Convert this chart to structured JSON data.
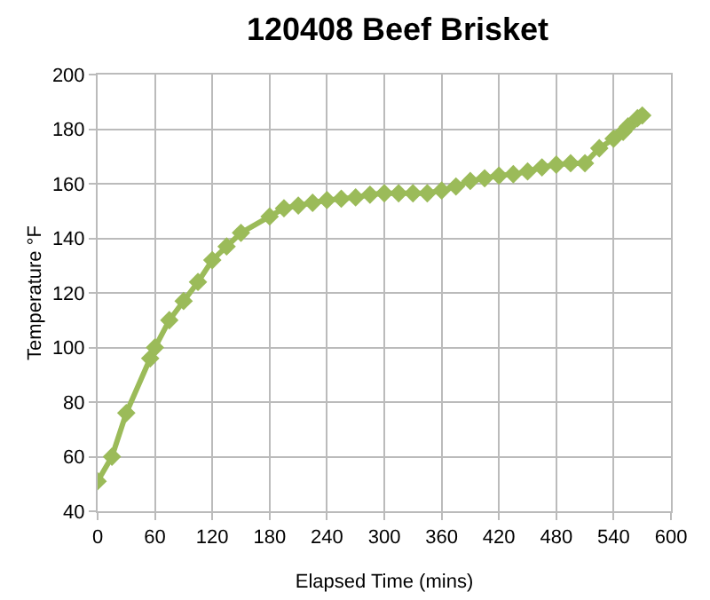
{
  "chart_data": {
    "type": "line",
    "title": "120408 Beef Brisket",
    "xlabel": "Elapsed Time (mins)",
    "ylabel": "Temperature °F",
    "x": [
      0,
      15,
      30,
      55,
      60,
      75,
      90,
      105,
      120,
      135,
      150,
      180,
      195,
      210,
      225,
      240,
      255,
      270,
      285,
      300,
      315,
      330,
      345,
      360,
      375,
      390,
      405,
      420,
      435,
      450,
      465,
      480,
      495,
      510,
      525,
      540,
      550,
      555,
      565,
      570
    ],
    "series": [
      {
        "color": "#9bbb59",
        "values": [
          51,
          60,
          76,
          96,
          100,
          110,
          117,
          124,
          132,
          137,
          142,
          148,
          151,
          152,
          153,
          154,
          154.5,
          155,
          156,
          156.5,
          156.5,
          156.5,
          156.5,
          157.5,
          159,
          161,
          162,
          163,
          163.5,
          164.5,
          166,
          167,
          167.5,
          167.5,
          173,
          176.5,
          179,
          181,
          184,
          185
        ]
      }
    ],
    "xlim": [
      0,
      600
    ],
    "xticks": [
      0,
      60,
      120,
      180,
      240,
      300,
      360,
      420,
      480,
      540,
      600
    ],
    "ylim": [
      40,
      200
    ],
    "yticks": [
      40,
      60,
      80,
      100,
      120,
      140,
      160,
      180,
      200
    ],
    "grid": true,
    "marker": "diamond",
    "line_style": "solid"
  }
}
